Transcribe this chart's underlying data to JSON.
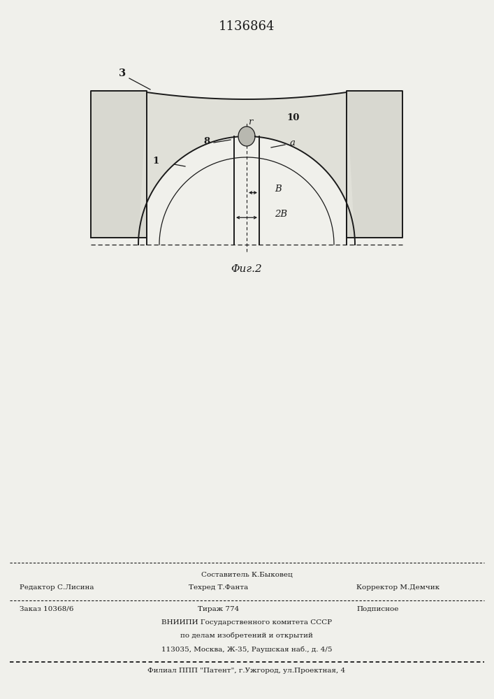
{
  "patent_number": "1136864",
  "fig_label": "Φиг.2",
  "bg_color": "#f0f0eb",
  "footer_line0_center": "Составитель К.Быковец",
  "footer_line1_left": "Редактор С.Лисина",
  "footer_line1_center": "Техред Т.Фанта",
  "footer_line1_right": "Корректор М.Демчик",
  "footer_line2_left": "Заказ 10368/6",
  "footer_line2_center": "Тираж 774",
  "footer_line2_right": "Подписное",
  "footer_line3": "ВНИИПИ Государственного комитета СССР",
  "footer_line4": "по делам изобретений и открытий",
  "footer_line5": "113035, Москва, Ж-35, Раушская наб., д. 4/5",
  "footer_line6": "Филиал ППП \"Патент\", г.Ужгород, ул.Проектная, 4"
}
